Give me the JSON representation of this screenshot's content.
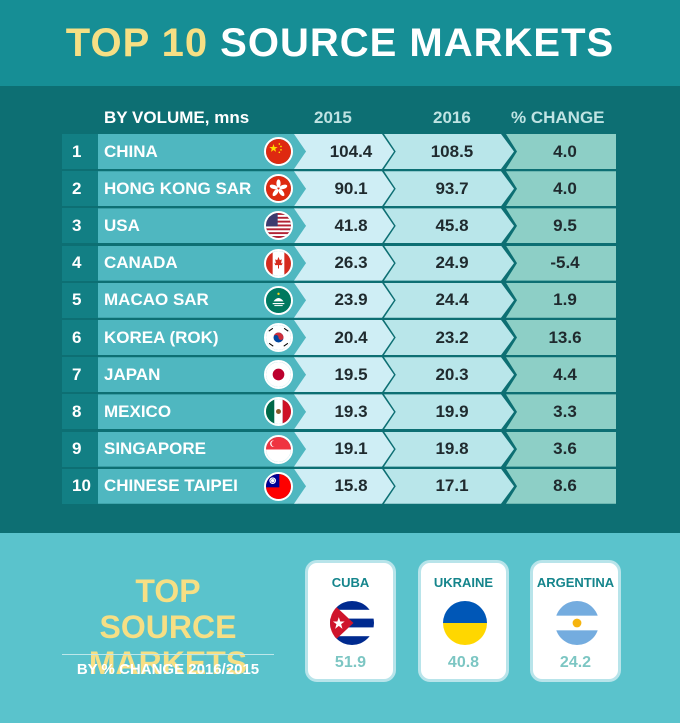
{
  "title": {
    "highlight": "TOP 10",
    "rest": "SOURCE MARKETS"
  },
  "chart_data": {
    "type": "table",
    "title": "TOP 10 SOURCE MARKETS",
    "columns": [
      "BY VOLUME, mns",
      "2015",
      "2016",
      "% CHANGE"
    ],
    "rows": [
      {
        "rank": "1",
        "market": "CHINA",
        "flag": "china-flag-icon",
        "v2015": "104.4",
        "v2016": "108.5",
        "change": "4.0"
      },
      {
        "rank": "2",
        "market": "HONG KONG SAR",
        "flag": "hong-kong-flag-icon",
        "v2015": "90.1",
        "v2016": "93.7",
        "change": "4.0"
      },
      {
        "rank": "3",
        "market": "USA",
        "flag": "usa-flag-icon",
        "v2015": "41.8",
        "v2016": "45.8",
        "change": "9.5"
      },
      {
        "rank": "4",
        "market": "CANADA",
        "flag": "canada-flag-icon",
        "v2015": "26.3",
        "v2016": "24.9",
        "change": "-5.4"
      },
      {
        "rank": "5",
        "market": "MACAO SAR",
        "flag": "macao-flag-icon",
        "v2015": "23.9",
        "v2016": "24.4",
        "change": "1.9"
      },
      {
        "rank": "6",
        "market": "KOREA (ROK)",
        "flag": "korea-flag-icon",
        "v2015": "20.4",
        "v2016": "23.2",
        "change": "13.6"
      },
      {
        "rank": "7",
        "market": "JAPAN",
        "flag": "japan-flag-icon",
        "v2015": "19.5",
        "v2016": "20.3",
        "change": "4.4"
      },
      {
        "rank": "8",
        "market": "MEXICO",
        "flag": "mexico-flag-icon",
        "v2015": "19.3",
        "v2016": "19.9",
        "change": "3.3"
      },
      {
        "rank": "9",
        "market": "SINGAPORE",
        "flag": "singapore-flag-icon",
        "v2015": "19.1",
        "v2016": "19.8",
        "change": "3.6"
      },
      {
        "rank": "10",
        "market": "CHINESE TAIPEI",
        "flag": "taipei-flag-icon",
        "v2015": "15.8",
        "v2016": "17.1",
        "change": "8.6"
      }
    ],
    "top_change": {
      "title": "TOP SOURCE MARKETS",
      "subtitle": "BY % CHANGE 2016/2015",
      "items": [
        {
          "market": "CUBA",
          "flag": "cuba-flag-icon",
          "value": "51.9"
        },
        {
          "market": "UKRAINE",
          "flag": "ukraine-flag-icon",
          "value": "40.8"
        },
        {
          "market": "ARGENTINA",
          "flag": "argentina-flag-icon",
          "value": "24.2"
        }
      ]
    }
  },
  "colors": {
    "title_highlight": "#f6df84",
    "header_bg": "#168e95",
    "table_bg": "#0d6f73",
    "bottom_bg": "#5ac3cc"
  }
}
